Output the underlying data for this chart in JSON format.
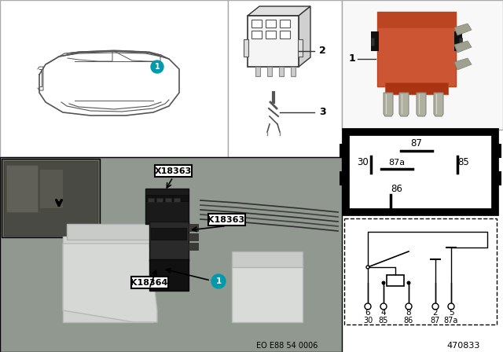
{
  "bg_color": "#ffffff",
  "doc_number": "470833",
  "eo_code": "EO E88 54 0006",
  "relay_orange": "#cc5533",
  "relay_orange2": "#bb4422",
  "photo_bg": "#909890",
  "photo_bg2": "#808878",
  "inset_bg": "#686858",
  "reservoir_color": "#c8cec8",
  "reservoir_dark": "#b0b6b0",
  "relay_black": "#1a1a1a",
  "relay_black2": "#2a2a2a",
  "connector_gray": "#888880",
  "car_panel_bg": "#ffffff",
  "car_line_color": "#555555",
  "comp_panel_bg": "#ffffff",
  "teal_circle": "#009aaa",
  "callout_border": "#000000",
  "pin_diagram_bg": "#ffffff",
  "schematic_bg": "#ffffff",
  "layout": {
    "car_panel": [
      0,
      0,
      290,
      200
    ],
    "comp_panel": [
      290,
      0,
      145,
      200
    ],
    "relay_photo": [
      435,
      0,
      205,
      165
    ],
    "pin_diagram": [
      435,
      165,
      205,
      110
    ],
    "schematic": [
      435,
      275,
      205,
      145
    ],
    "photo_panel": [
      0,
      200,
      435,
      248
    ]
  }
}
